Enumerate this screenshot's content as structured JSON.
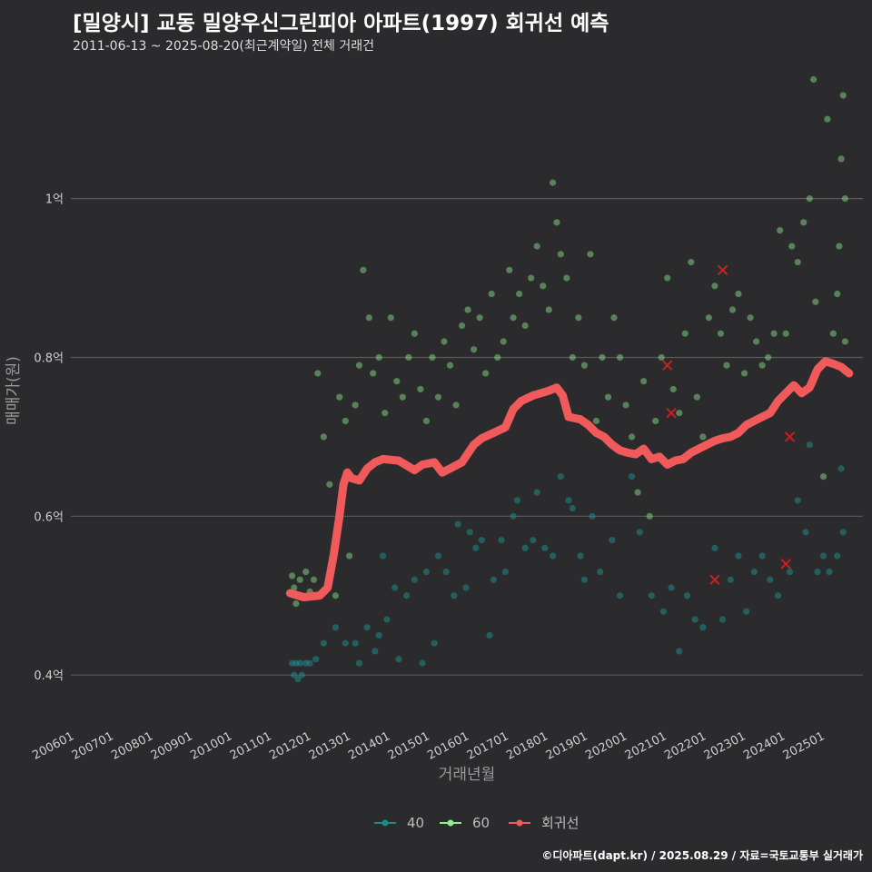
{
  "header": {
    "title": "[밀양시] 교동 밀양우신그린피아 아파트(1997) 회귀선 예측",
    "subtitle": "2011-06-13 ~ 2025-08-20(최근계약일) 전체 거래건"
  },
  "credit": "©디아파트(dapt.kr) / 2025.08.29 / 자료=국토교통부 실거래가",
  "colors": {
    "background": "#2b2b2d",
    "grid": "#5a5a5a",
    "series_40": "#1f8a8a",
    "series_60": "#90ee90",
    "regression": "#f05a5a",
    "outlier": "#cc1f1f"
  },
  "chart_data": {
    "type": "scatter",
    "xlabel": "거래년월",
    "ylabel": "매매가(원)",
    "xlim": [
      2005.9,
      2025.95
    ],
    "ylim": [
      0.335,
      1.17
    ],
    "y_ticks": [
      {
        "value": 0.4,
        "label": "0.4억"
      },
      {
        "value": 0.6,
        "label": "0.6억"
      },
      {
        "value": 0.8,
        "label": "0.8억"
      },
      {
        "value": 1.0,
        "label": "1억"
      }
    ],
    "x_ticks": [
      {
        "value": 2006,
        "label": "200601"
      },
      {
        "value": 2007,
        "label": "200701"
      },
      {
        "value": 2008,
        "label": "200801"
      },
      {
        "value": 2009,
        "label": "200901"
      },
      {
        "value": 2010,
        "label": "201001"
      },
      {
        "value": 2011,
        "label": "201101"
      },
      {
        "value": 2012,
        "label": "201201"
      },
      {
        "value": 2013,
        "label": "201301"
      },
      {
        "value": 2014,
        "label": "201401"
      },
      {
        "value": 2015,
        "label": "201501"
      },
      {
        "value": 2016,
        "label": "201601"
      },
      {
        "value": 2017,
        "label": "201701"
      },
      {
        "value": 2018,
        "label": "201801"
      },
      {
        "value": 2019,
        "label": "201901"
      },
      {
        "value": 2020,
        "label": "202001"
      },
      {
        "value": 2021,
        "label": "202101"
      },
      {
        "value": 2022,
        "label": "202201"
      },
      {
        "value": 2023,
        "label": "202301"
      },
      {
        "value": 2024,
        "label": "202401"
      },
      {
        "value": 2025,
        "label": "202501"
      }
    ],
    "legend": [
      {
        "key": "s40",
        "label": "40"
      },
      {
        "key": "s60",
        "label": "60"
      },
      {
        "key": "reg",
        "label": "회귀선"
      }
    ],
    "series": [
      {
        "name": "40",
        "points": [
          [
            2011.5,
            0.415
          ],
          [
            2011.55,
            0.4
          ],
          [
            2011.6,
            0.415
          ],
          [
            2011.65,
            0.395
          ],
          [
            2011.7,
            0.415
          ],
          [
            2011.75,
            0.4
          ],
          [
            2011.85,
            0.415
          ],
          [
            2011.95,
            0.415
          ],
          [
            2012.1,
            0.42
          ],
          [
            2012.3,
            0.44
          ],
          [
            2012.6,
            0.46
          ],
          [
            2012.85,
            0.44
          ],
          [
            2013.1,
            0.44
          ],
          [
            2013.2,
            0.415
          ],
          [
            2013.4,
            0.46
          ],
          [
            2013.6,
            0.43
          ],
          [
            2013.7,
            0.45
          ],
          [
            2013.8,
            0.55
          ],
          [
            2013.9,
            0.47
          ],
          [
            2014.1,
            0.51
          ],
          [
            2014.2,
            0.42
          ],
          [
            2014.4,
            0.5
          ],
          [
            2014.6,
            0.52
          ],
          [
            2014.8,
            0.415
          ],
          [
            2014.9,
            0.53
          ],
          [
            2015.1,
            0.44
          ],
          [
            2015.2,
            0.55
          ],
          [
            2015.4,
            0.53
          ],
          [
            2015.6,
            0.5
          ],
          [
            2015.7,
            0.59
          ],
          [
            2015.9,
            0.51
          ],
          [
            2016.0,
            0.58
          ],
          [
            2016.15,
            0.56
          ],
          [
            2016.3,
            0.57
          ],
          [
            2016.5,
            0.45
          ],
          [
            2016.6,
            0.52
          ],
          [
            2016.8,
            0.57
          ],
          [
            2016.9,
            0.53
          ],
          [
            2017.1,
            0.6
          ],
          [
            2017.2,
            0.62
          ],
          [
            2017.4,
            0.56
          ],
          [
            2017.6,
            0.57
          ],
          [
            2017.7,
            0.63
          ],
          [
            2017.9,
            0.56
          ],
          [
            2018.1,
            0.55
          ],
          [
            2018.3,
            0.65
          ],
          [
            2018.5,
            0.62
          ],
          [
            2018.6,
            0.61
          ],
          [
            2018.8,
            0.55
          ],
          [
            2018.9,
            0.52
          ],
          [
            2019.1,
            0.6
          ],
          [
            2019.3,
            0.53
          ],
          [
            2019.6,
            0.57
          ],
          [
            2019.8,
            0.5
          ],
          [
            2020.1,
            0.65
          ],
          [
            2020.3,
            0.58
          ],
          [
            2020.6,
            0.5
          ],
          [
            2020.9,
            0.48
          ],
          [
            2021.1,
            0.51
          ],
          [
            2021.3,
            0.43
          ],
          [
            2021.5,
            0.5
          ],
          [
            2021.7,
            0.47
          ],
          [
            2021.9,
            0.46
          ],
          [
            2022.2,
            0.56
          ],
          [
            2022.4,
            0.47
          ],
          [
            2022.6,
            0.52
          ],
          [
            2022.8,
            0.55
          ],
          [
            2023.0,
            0.48
          ],
          [
            2023.2,
            0.53
          ],
          [
            2023.4,
            0.55
          ],
          [
            2023.6,
            0.52
          ],
          [
            2023.8,
            0.5
          ],
          [
            2024.1,
            0.53
          ],
          [
            2024.3,
            0.62
          ],
          [
            2024.5,
            0.58
          ],
          [
            2024.8,
            0.53
          ],
          [
            2024.95,
            0.55
          ],
          [
            2025.1,
            0.53
          ],
          [
            2025.3,
            0.55
          ],
          [
            2025.45,
            0.58
          ],
          [
            2024.6,
            0.69
          ],
          [
            2025.4,
            0.66
          ]
        ]
      },
      {
        "name": "60",
        "points": [
          [
            2011.5,
            0.525
          ],
          [
            2011.55,
            0.51
          ],
          [
            2011.6,
            0.49
          ],
          [
            2011.7,
            0.52
          ],
          [
            2011.85,
            0.53
          ],
          [
            2011.95,
            0.505
          ],
          [
            2012.05,
            0.52
          ],
          [
            2012.15,
            0.78
          ],
          [
            2012.3,
            0.7
          ],
          [
            2012.45,
            0.64
          ],
          [
            2012.6,
            0.5
          ],
          [
            2012.7,
            0.75
          ],
          [
            2012.85,
            0.72
          ],
          [
            2012.95,
            0.55
          ],
          [
            2013.1,
            0.74
          ],
          [
            2013.2,
            0.79
          ],
          [
            2013.3,
            0.91
          ],
          [
            2013.45,
            0.85
          ],
          [
            2013.55,
            0.78
          ],
          [
            2013.7,
            0.8
          ],
          [
            2013.85,
            0.73
          ],
          [
            2014.0,
            0.85
          ],
          [
            2014.15,
            0.77
          ],
          [
            2014.3,
            0.75
          ],
          [
            2014.45,
            0.8
          ],
          [
            2014.6,
            0.83
          ],
          [
            2014.75,
            0.76
          ],
          [
            2014.9,
            0.72
          ],
          [
            2015.05,
            0.8
          ],
          [
            2015.2,
            0.75
          ],
          [
            2015.35,
            0.82
          ],
          [
            2015.5,
            0.79
          ],
          [
            2015.65,
            0.74
          ],
          [
            2015.8,
            0.84
          ],
          [
            2015.95,
            0.86
          ],
          [
            2016.1,
            0.81
          ],
          [
            2016.25,
            0.85
          ],
          [
            2016.4,
            0.78
          ],
          [
            2016.55,
            0.88
          ],
          [
            2016.7,
            0.8
          ],
          [
            2016.85,
            0.82
          ],
          [
            2017.0,
            0.91
          ],
          [
            2017.1,
            0.85
          ],
          [
            2017.25,
            0.88
          ],
          [
            2017.4,
            0.84
          ],
          [
            2017.55,
            0.9
          ],
          [
            2017.7,
            0.94
          ],
          [
            2017.85,
            0.89
          ],
          [
            2018.0,
            0.86
          ],
          [
            2018.1,
            1.02
          ],
          [
            2018.2,
            0.97
          ],
          [
            2018.3,
            0.93
          ],
          [
            2018.45,
            0.9
          ],
          [
            2018.6,
            0.8
          ],
          [
            2018.75,
            0.85
          ],
          [
            2018.9,
            0.79
          ],
          [
            2019.05,
            0.93
          ],
          [
            2019.2,
            0.72
          ],
          [
            2019.35,
            0.8
          ],
          [
            2019.5,
            0.75
          ],
          [
            2019.65,
            0.85
          ],
          [
            2019.8,
            0.8
          ],
          [
            2019.95,
            0.74
          ],
          [
            2020.1,
            0.7
          ],
          [
            2020.25,
            0.63
          ],
          [
            2020.4,
            0.77
          ],
          [
            2020.55,
            0.6
          ],
          [
            2020.7,
            0.72
          ],
          [
            2020.85,
            0.8
          ],
          [
            2021.0,
            0.9
          ],
          [
            2021.15,
            0.76
          ],
          [
            2021.3,
            0.73
          ],
          [
            2021.45,
            0.83
          ],
          [
            2021.6,
            0.92
          ],
          [
            2021.75,
            0.75
          ],
          [
            2021.9,
            0.7
          ],
          [
            2022.05,
            0.85
          ],
          [
            2022.2,
            0.89
          ],
          [
            2022.35,
            0.83
          ],
          [
            2022.5,
            0.79
          ],
          [
            2022.65,
            0.86
          ],
          [
            2022.8,
            0.88
          ],
          [
            2022.95,
            0.78
          ],
          [
            2023.1,
            0.85
          ],
          [
            2023.25,
            0.82
          ],
          [
            2023.4,
            0.79
          ],
          [
            2023.55,
            0.8
          ],
          [
            2023.7,
            0.83
          ],
          [
            2023.85,
            0.96
          ],
          [
            2024.0,
            0.83
          ],
          [
            2024.15,
            0.94
          ],
          [
            2024.3,
            0.92
          ],
          [
            2024.45,
            0.97
          ],
          [
            2024.6,
            1.0
          ],
          [
            2024.75,
            0.87
          ],
          [
            2024.95,
            0.65
          ],
          [
            2025.05,
            1.1
          ],
          [
            2025.2,
            0.83
          ],
          [
            2025.35,
            0.94
          ],
          [
            2025.4,
            1.05
          ],
          [
            2025.45,
            1.13
          ],
          [
            2025.5,
            1.0
          ],
          [
            2025.3,
            0.88
          ],
          [
            2024.7,
            1.15
          ],
          [
            2025.5,
            0.82
          ]
        ]
      }
    ],
    "outliers": [
      [
        2021.0,
        0.79
      ],
      [
        2021.1,
        0.73
      ],
      [
        2022.4,
        0.91
      ],
      [
        2022.2,
        0.52
      ],
      [
        2024.0,
        0.54
      ],
      [
        2024.1,
        0.7
      ]
    ],
    "regression": {
      "name": "회귀선",
      "x": [
        2011.45,
        2011.8,
        2012.2,
        2012.4,
        2012.55,
        2012.7,
        2012.8,
        2012.9,
        2013.0,
        2013.2,
        2013.4,
        2013.6,
        2013.8,
        2014.2,
        2014.6,
        2014.8,
        2015.1,
        2015.3,
        2015.5,
        2015.8,
        2016.1,
        2016.3,
        2016.6,
        2016.9,
        2017.1,
        2017.3,
        2017.6,
        2017.8,
        2018.0,
        2018.2,
        2018.35,
        2018.5,
        2018.8,
        2019.0,
        2019.2,
        2019.4,
        2019.6,
        2019.8,
        2020.0,
        2020.2,
        2020.4,
        2020.6,
        2020.8,
        2021.0,
        2021.2,
        2021.4,
        2021.6,
        2021.8,
        2022.0,
        2022.2,
        2022.4,
        2022.6,
        2022.8,
        2023.0,
        2023.2,
        2023.4,
        2023.6,
        2023.8,
        2024.0,
        2024.2,
        2024.4,
        2024.6,
        2024.8,
        2025.0,
        2025.2,
        2025.4,
        2025.6
      ],
      "y": [
        0.503,
        0.498,
        0.5,
        0.51,
        0.55,
        0.6,
        0.64,
        0.655,
        0.648,
        0.645,
        0.66,
        0.668,
        0.672,
        0.67,
        0.658,
        0.665,
        0.668,
        0.655,
        0.66,
        0.668,
        0.69,
        0.698,
        0.705,
        0.712,
        0.735,
        0.745,
        0.752,
        0.755,
        0.758,
        0.762,
        0.752,
        0.725,
        0.722,
        0.715,
        0.705,
        0.7,
        0.69,
        0.683,
        0.68,
        0.678,
        0.685,
        0.672,
        0.675,
        0.665,
        0.67,
        0.672,
        0.68,
        0.685,
        0.69,
        0.695,
        0.698,
        0.7,
        0.705,
        0.715,
        0.72,
        0.725,
        0.73,
        0.745,
        0.755,
        0.765,
        0.755,
        0.762,
        0.785,
        0.795,
        0.792,
        0.788,
        0.78
      ]
    }
  }
}
